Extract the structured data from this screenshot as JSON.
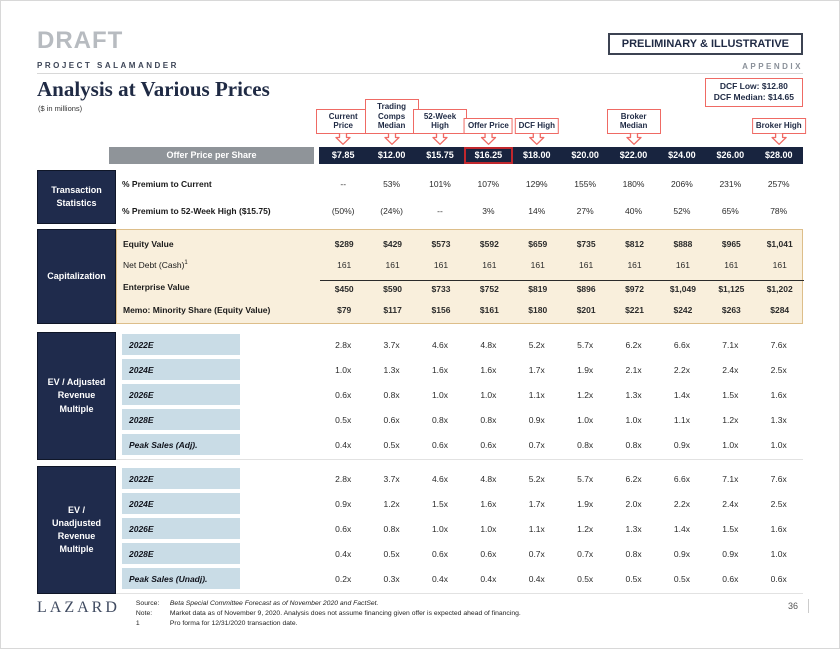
{
  "colors": {
    "navy": "#18243f",
    "section_navy": "#1f2b4c",
    "accent_red": "#ef6a64",
    "highlight_red": "#c1272d",
    "tan_bg": "#f9efdc",
    "tan_border": "#ddbe8a",
    "blue_label": "#c9dce6",
    "gray_bar": "#8f9499"
  },
  "header": {
    "draft": "DRAFT",
    "project": "PROJECT SALAMANDER",
    "stamp": "PRELIMINARY & ILLUSTRATIVE",
    "appendix": "APPENDIX"
  },
  "title": {
    "main": "Analysis at Various Prices",
    "subtitle": "($ in millions)",
    "dcf_low": "DCF Low: $12.80",
    "dcf_median": "DCF Median: $14.65"
  },
  "callouts": [
    {
      "label": "Current Price",
      "col": 0
    },
    {
      "label": "Trading Comps Median",
      "col": 1
    },
    {
      "label": "52-Week High",
      "col": 2
    },
    {
      "label": "Offer Price",
      "col": 3,
      "nowrap": true
    },
    {
      "label": "DCF High",
      "col": 4,
      "nowrap": true
    },
    {
      "label": "Broker Median",
      "col": 6
    },
    {
      "label": "Broker High",
      "col": 9
    }
  ],
  "price_header": {
    "label": "Offer Price per Share",
    "prices": [
      "$7.85",
      "$12.00",
      "$15.75",
      "$16.25",
      "$18.00",
      "$20.00",
      "$22.00",
      "$24.00",
      "$26.00",
      "$28.00"
    ],
    "highlighted_index": 3
  },
  "sections": [
    {
      "id": "transaction-statistics",
      "label": "Transaction Statistics",
      "style": "plain",
      "rows": [
        {
          "label": "% Premium to Current",
          "values": [
            "--",
            "53%",
            "101%",
            "107%",
            "129%",
            "155%",
            "180%",
            "206%",
            "231%",
            "257%"
          ]
        },
        {
          "label": "% Premium to 52-Week High ($15.75)",
          "values": [
            "(50%)",
            "(24%)",
            "--",
            "3%",
            "14%",
            "27%",
            "40%",
            "52%",
            "65%",
            "78%"
          ]
        }
      ]
    },
    {
      "id": "capitalization",
      "label": "Capitalization",
      "style": "tan",
      "rows": [
        {
          "label": "Equity Value",
          "values": [
            "$289",
            "$429",
            "$573",
            "$592",
            "$659",
            "$735",
            "$812",
            "$888",
            "$965",
            "$1,041"
          ]
        },
        {
          "label": "Net Debt (Cash)",
          "sup": "1",
          "bold": false,
          "values": [
            "161",
            "161",
            "161",
            "161",
            "161",
            "161",
            "161",
            "161",
            "161",
            "161"
          ]
        },
        {
          "label": "Enterprise Value",
          "topline": true,
          "values": [
            "$450",
            "$590",
            "$733",
            "$752",
            "$819",
            "$896",
            "$972",
            "$1,049",
            "$1,125",
            "$1,202"
          ]
        },
        {
          "label": "Memo: Minority Share (Equity Value)",
          "values": [
            "$79",
            "$117",
            "$156",
            "$161",
            "$180",
            "$201",
            "$221",
            "$242",
            "$263",
            "$284"
          ]
        }
      ]
    },
    {
      "id": "ev-adjusted-revenue-multiple",
      "label": "EV / Adjusted Revenue Multiple",
      "style": "blue",
      "rows": [
        {
          "label": "2022E",
          "values": [
            "2.8x",
            "3.7x",
            "4.6x",
            "4.8x",
            "5.2x",
            "5.7x",
            "6.2x",
            "6.6x",
            "7.1x",
            "7.6x"
          ]
        },
        {
          "label": "2024E",
          "values": [
            "1.0x",
            "1.3x",
            "1.6x",
            "1.6x",
            "1.7x",
            "1.9x",
            "2.1x",
            "2.2x",
            "2.4x",
            "2.5x"
          ]
        },
        {
          "label": "2026E",
          "values": [
            "0.6x",
            "0.8x",
            "1.0x",
            "1.0x",
            "1.1x",
            "1.2x",
            "1.3x",
            "1.4x",
            "1.5x",
            "1.6x"
          ]
        },
        {
          "label": "2028E",
          "values": [
            "0.5x",
            "0.6x",
            "0.8x",
            "0.8x",
            "0.9x",
            "1.0x",
            "1.0x",
            "1.1x",
            "1.2x",
            "1.3x"
          ]
        },
        {
          "label": "Peak Sales (Adj).",
          "values": [
            "0.4x",
            "0.5x",
            "0.6x",
            "0.6x",
            "0.7x",
            "0.8x",
            "0.8x",
            "0.9x",
            "1.0x",
            "1.0x"
          ]
        }
      ]
    },
    {
      "id": "ev-unadjusted-revenue-multiple",
      "label": "EV / Unadjusted Revenue Multiple",
      "style": "blue",
      "rows": [
        {
          "label": "2022E",
          "values": [
            "2.8x",
            "3.7x",
            "4.6x",
            "4.8x",
            "5.2x",
            "5.7x",
            "6.2x",
            "6.6x",
            "7.1x",
            "7.6x"
          ]
        },
        {
          "label": "2024E",
          "values": [
            "0.9x",
            "1.2x",
            "1.5x",
            "1.6x",
            "1.7x",
            "1.9x",
            "2.0x",
            "2.2x",
            "2.4x",
            "2.5x"
          ]
        },
        {
          "label": "2026E",
          "values": [
            "0.6x",
            "0.8x",
            "1.0x",
            "1.0x",
            "1.1x",
            "1.2x",
            "1.3x",
            "1.4x",
            "1.5x",
            "1.6x"
          ]
        },
        {
          "label": "2028E",
          "values": [
            "0.4x",
            "0.5x",
            "0.6x",
            "0.6x",
            "0.7x",
            "0.7x",
            "0.8x",
            "0.9x",
            "0.9x",
            "1.0x"
          ]
        },
        {
          "label": "Peak Sales (Unadj).",
          "values": [
            "0.2x",
            "0.3x",
            "0.4x",
            "0.4x",
            "0.4x",
            "0.5x",
            "0.5x",
            "0.5x",
            "0.6x",
            "0.6x"
          ]
        }
      ]
    }
  ],
  "footer": {
    "logo": "LAZARD",
    "source_label": "Source:",
    "source_text": "Beta Special Committee Forecast as of November 2020 and FactSet.",
    "note_label": "Note:",
    "note_text": "Market data as of November 9, 2020. Analysis does not assume financing given offer is expected ahead of financing.",
    "footnote_label": "1",
    "footnote_text": "Pro forma for 12/31/2020 transaction date.",
    "page_number": "36"
  }
}
